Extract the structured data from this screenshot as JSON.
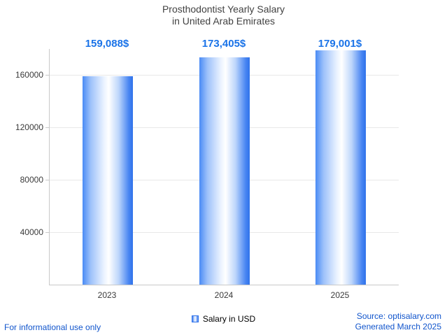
{
  "title": {
    "line1": "Prosthodontist Yearly Salary",
    "line2": "in United Arab Emirates"
  },
  "chart_data": {
    "type": "bar",
    "title": "Prosthodontist Yearly Salary in United Arab Emirates",
    "categories": [
      "2023",
      "2024",
      "2025"
    ],
    "values": [
      159088,
      173405,
      179001
    ],
    "value_labels": [
      "159,088$",
      "173,405$",
      "179,001$"
    ],
    "series": [
      {
        "name": "Salary in USD",
        "values": [
          159088,
          173405,
          179001
        ]
      }
    ],
    "xlabel": "",
    "ylabel": "",
    "ylim": [
      0,
      180000
    ],
    "yticks": [
      40000,
      80000,
      120000,
      160000
    ],
    "ytick_labels": [
      "40000",
      "80000",
      "120000",
      "160000"
    ],
    "grid": true,
    "legend_position": "bottom",
    "bar_color_edge": "#2f72ea",
    "bar_color_center": "#ffffff",
    "label_color": "#1a73e8"
  },
  "legend": {
    "label": "Salary in USD"
  },
  "footer": {
    "left": "For informational use only",
    "source": "Source: optisalary.com",
    "generated": "Generated March 2025"
  },
  "colors": {
    "value_label_blue": "#1a73e8",
    "footer_blue": "#1155cc",
    "grid_gray": "#e8e8e8",
    "axis_gray": "#c9c9c9",
    "title_gray": "#424242"
  }
}
